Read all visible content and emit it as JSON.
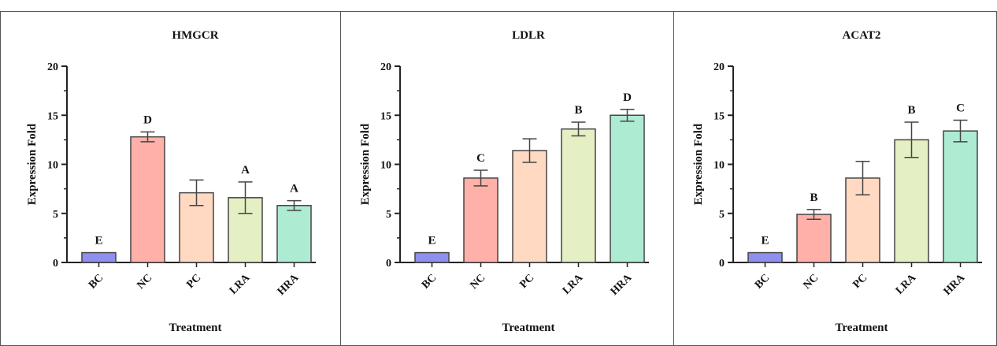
{
  "chart_data": [
    {
      "type": "bar",
      "title": "HMGCR",
      "xlabel": "Treatment",
      "ylabel": "Expression Fold",
      "ylim": [
        0,
        20
      ],
      "yticks": [
        "0",
        "5",
        "10",
        "15",
        "20"
      ],
      "categories": [
        "BC",
        "NC",
        "PC",
        "LRA",
        "HRA"
      ],
      "values": [
        1,
        12.8,
        7.1,
        6.6,
        5.8
      ],
      "error": [
        0,
        0.5,
        1.3,
        1.6,
        0.5
      ],
      "letters": [
        "E",
        "D",
        "",
        "A",
        "A"
      ],
      "colors": [
        "#8f8ff0",
        "#ffb0a8",
        "#ffd9c2",
        "#e4efc4",
        "#aeebd3"
      ],
      "grid": false
    },
    {
      "type": "bar",
      "title": "LDLR",
      "xlabel": "Treatment",
      "ylabel": "Expression Fold",
      "ylim": [
        0,
        20
      ],
      "yticks": [
        "0",
        "5",
        "10",
        "15",
        "20"
      ],
      "categories": [
        "BC",
        "NC",
        "PC",
        "LRA",
        "HRA"
      ],
      "values": [
        1,
        8.6,
        11.4,
        13.6,
        15.0
      ],
      "error": [
        0,
        0.8,
        1.2,
        0.7,
        0.6
      ],
      "letters": [
        "E",
        "C",
        "",
        "B",
        "D"
      ],
      "colors": [
        "#8f8ff0",
        "#ffb0a8",
        "#ffd9c2",
        "#e4efc4",
        "#aeebd3"
      ],
      "grid": false
    },
    {
      "type": "bar",
      "title": "ACAT2",
      "xlabel": "Treatment",
      "ylabel": "Expression Fold",
      "ylim": [
        0,
        20
      ],
      "yticks": [
        "0",
        "5",
        "10",
        "15",
        "20"
      ],
      "categories": [
        "BC",
        "NC",
        "PC",
        "LRA",
        "HRA"
      ],
      "values": [
        1,
        4.9,
        8.6,
        12.5,
        13.4
      ],
      "error": [
        0,
        0.5,
        1.7,
        1.8,
        1.1
      ],
      "letters": [
        "E",
        "B",
        "",
        "B",
        "C"
      ],
      "colors": [
        "#8f8ff0",
        "#ffb0a8",
        "#ffd9c2",
        "#e4efc4",
        "#aeebd3"
      ],
      "grid": false
    }
  ]
}
